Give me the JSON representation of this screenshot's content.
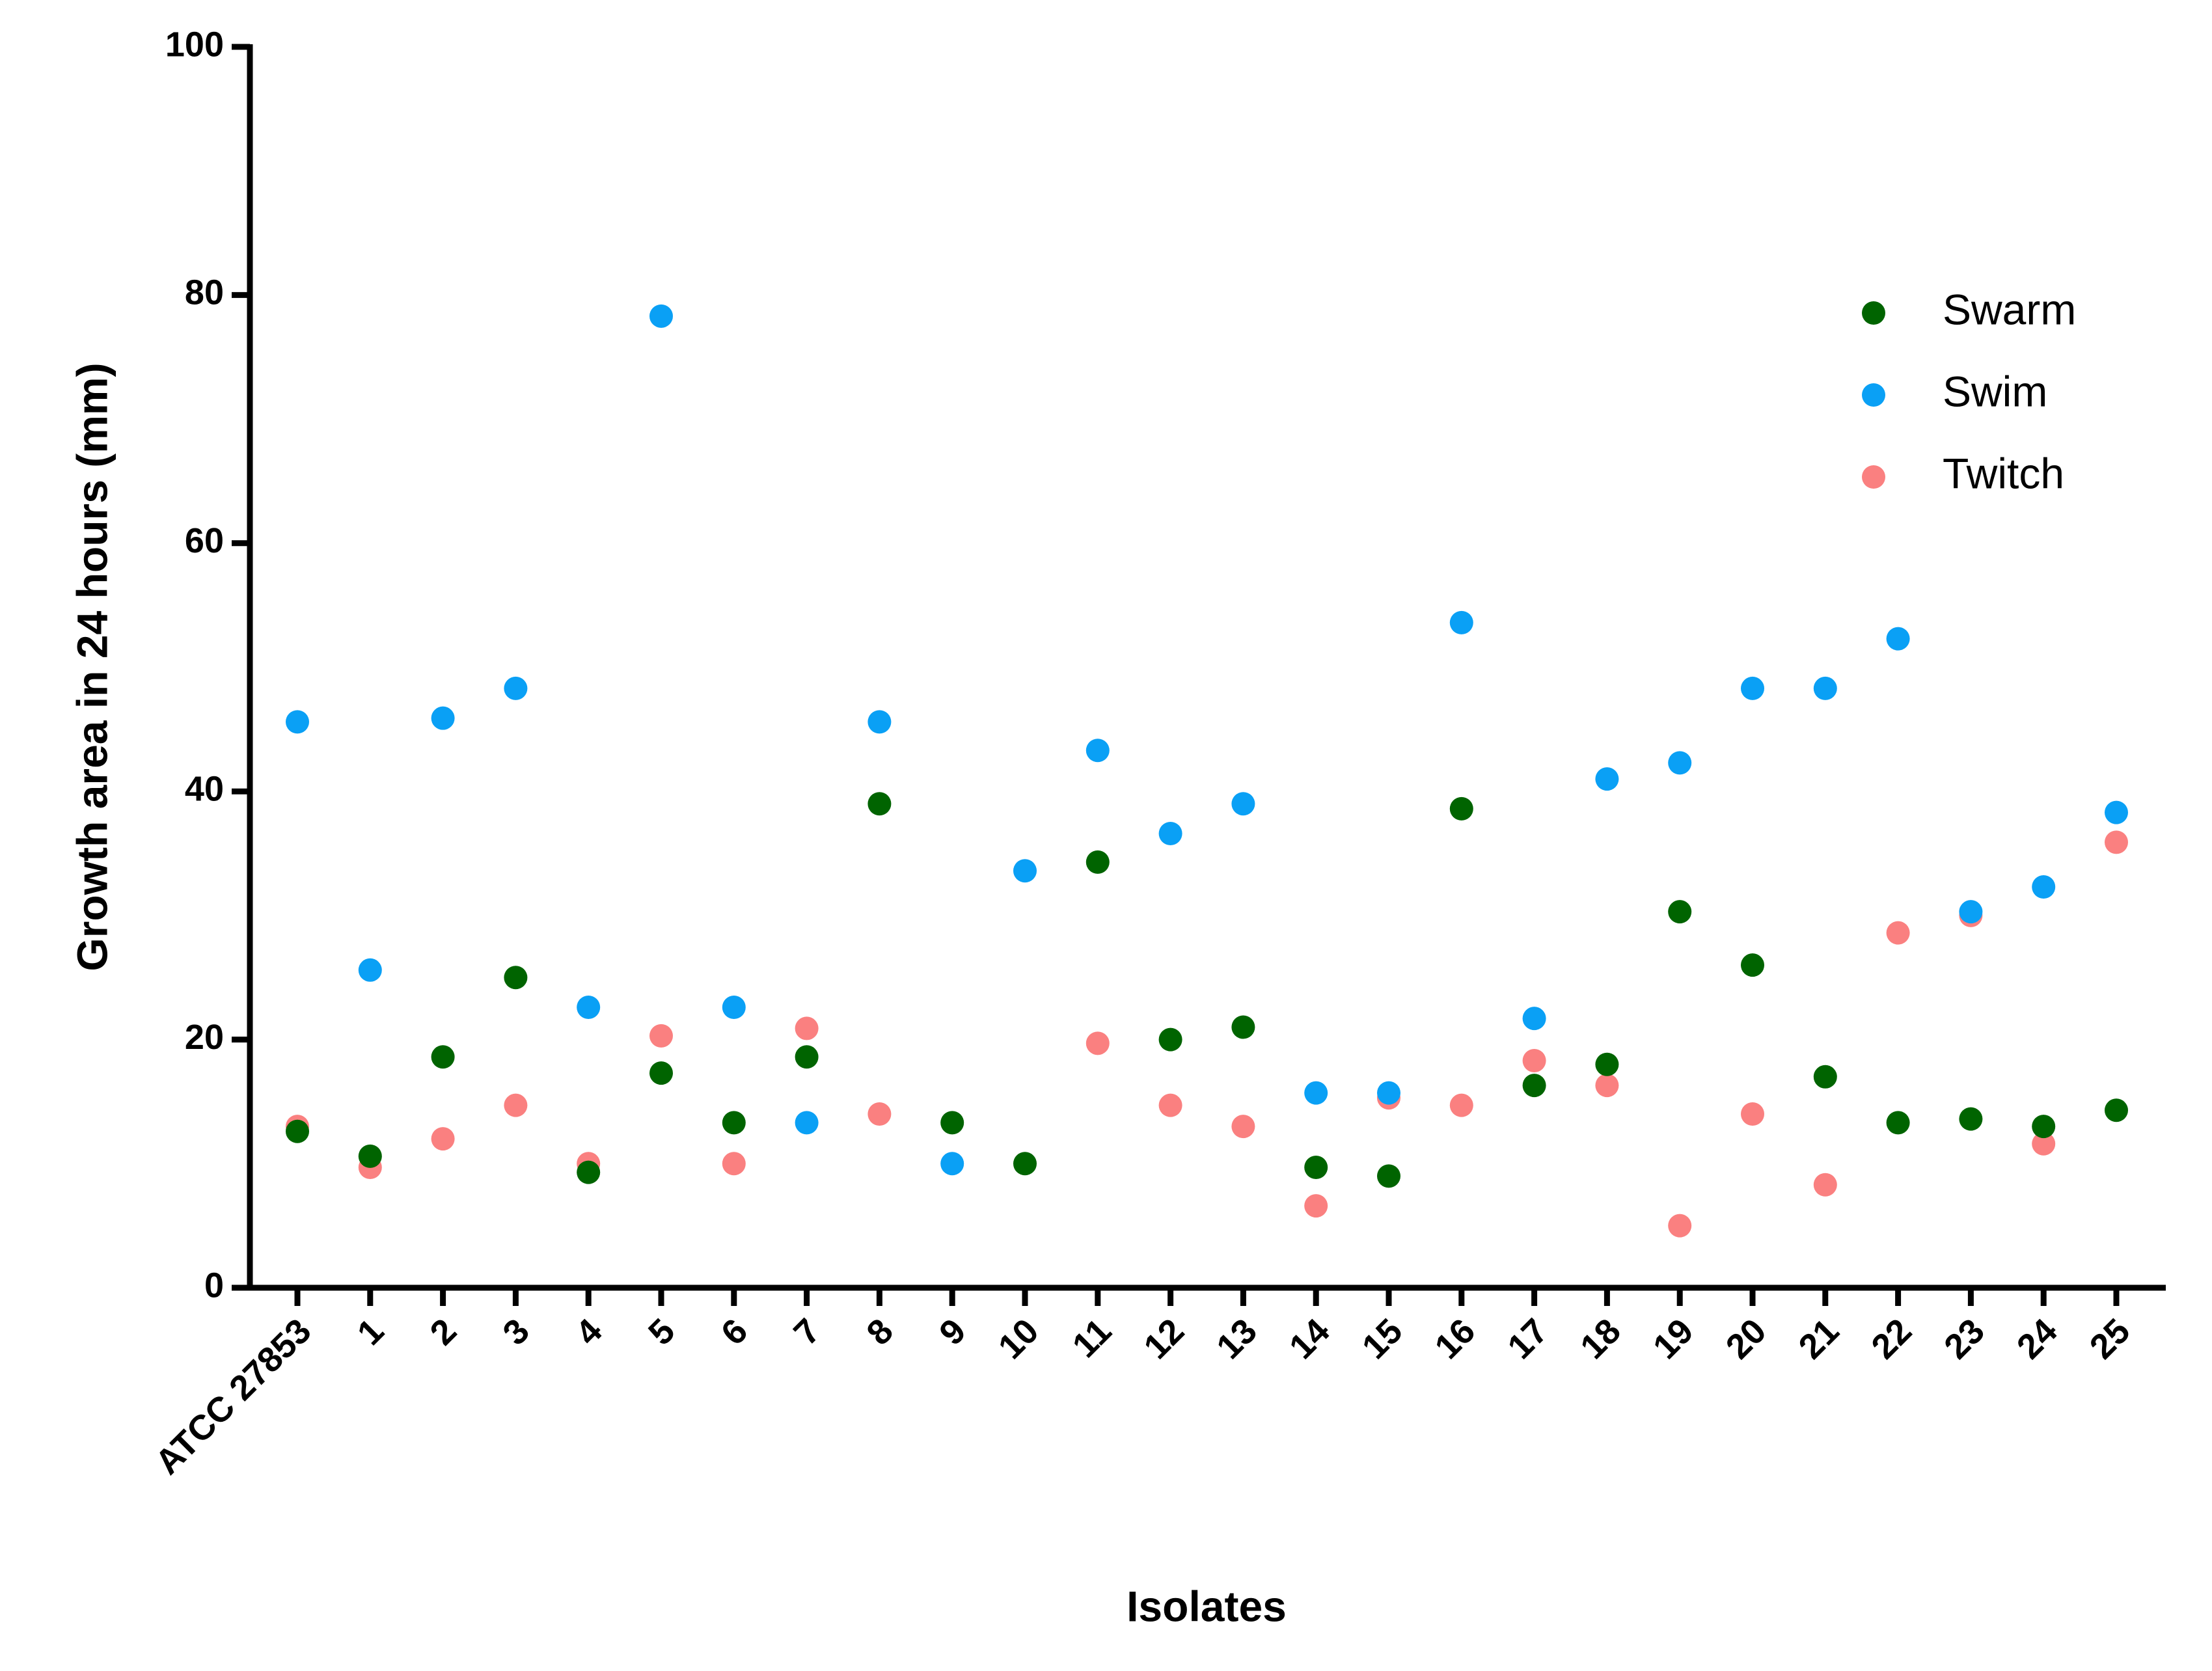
{
  "chart_data": {
    "type": "scatter",
    "x_label": "Isolates",
    "y_label": "Growth area in 24 hours (mm)",
    "categories": [
      "ATCC 27853",
      "1",
      "2",
      "3",
      "4",
      "5",
      "6",
      "7",
      "8",
      "9",
      "10",
      "11",
      "12",
      "13",
      "14",
      "15",
      "16",
      "17",
      "18",
      "19",
      "20",
      "21",
      "22",
      "23",
      "24",
      "25"
    ],
    "series": [
      {
        "name": "Swarm",
        "color": "#006400",
        "values": [
          12.6,
          10.6,
          18.6,
          25,
          9.3,
          17.3,
          13.3,
          18.6,
          39,
          13.3,
          10,
          34.3,
          20,
          21,
          9.7,
          9,
          38.6,
          16.3,
          18,
          30.3,
          26,
          17,
          13.3,
          13.6,
          13,
          14.3
        ]
      },
      {
        "name": "Swim",
        "color": "#0aa0f5",
        "values": [
          45.6,
          25.6,
          45.9,
          48.3,
          22.6,
          78.3,
          22.6,
          13.3,
          45.6,
          10,
          33.6,
          43.3,
          36.6,
          39,
          15.7,
          15.7,
          53.6,
          21.7,
          41,
          42.3,
          48.3,
          48.3,
          52.3,
          30.3,
          32.3,
          38.3
        ]
      },
      {
        "name": "Twitch",
        "color": "#fa8080",
        "values": [
          13,
          9.7,
          12,
          14.7,
          10,
          20.3,
          10,
          20.9,
          14,
          null,
          null,
          19.7,
          14.7,
          13,
          6.6,
          15.3,
          14.7,
          18.3,
          16.3,
          5,
          14,
          8.3,
          28.6,
          30,
          11.6,
          35.9
        ]
      }
    ],
    "ylim": [
      0,
      100
    ],
    "yticks": [
      0,
      20,
      40,
      60,
      80,
      100
    ],
    "legend": "upper right"
  }
}
